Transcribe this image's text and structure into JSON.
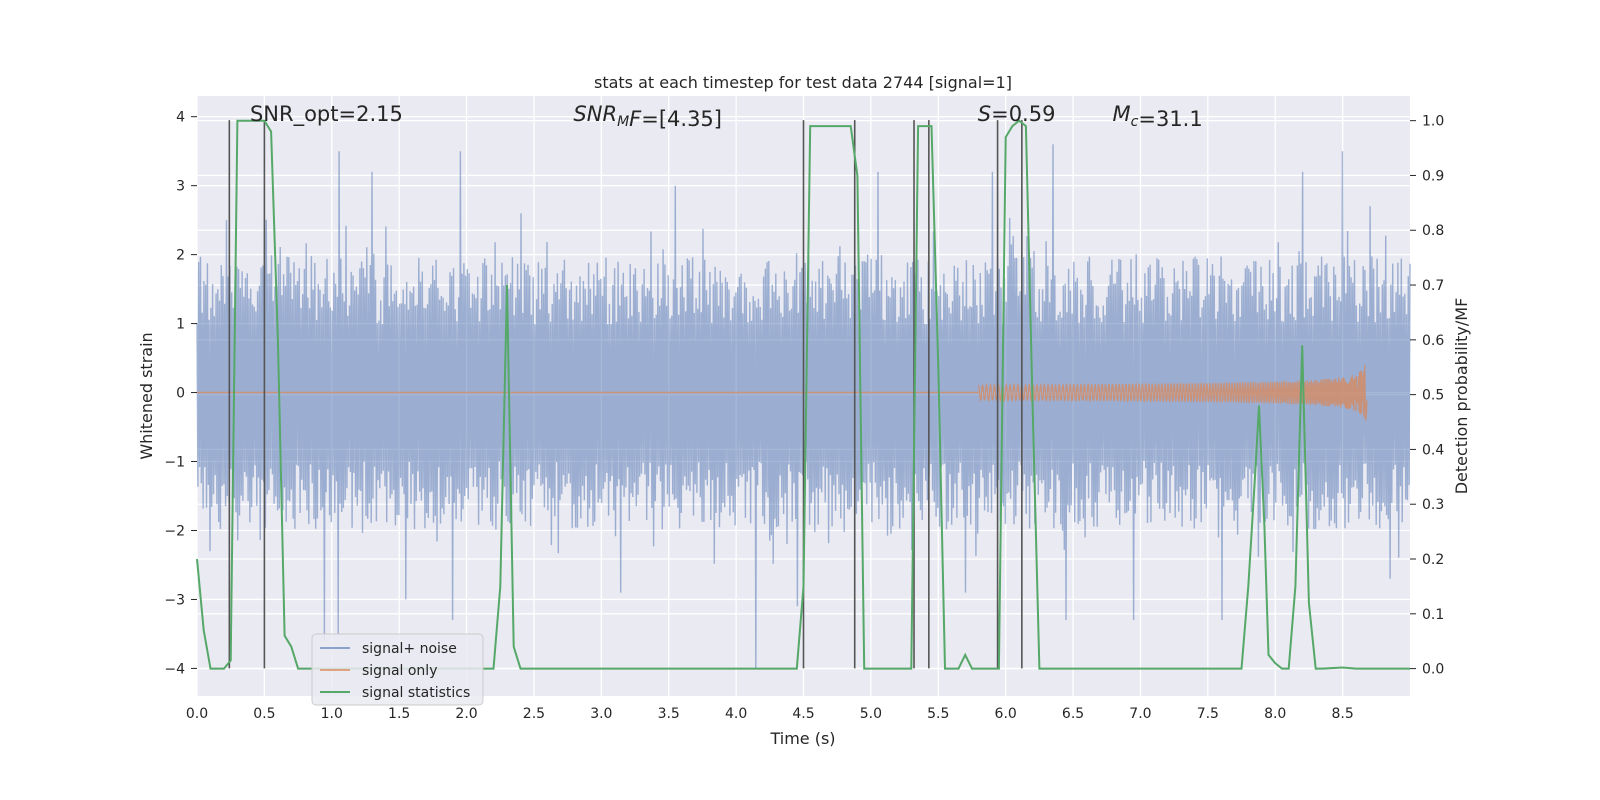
{
  "chart_data": {
    "type": "line",
    "title": "stats at each timestep for test data 2744 [signal=1]",
    "xlabel": "Time (s)",
    "ylabel": "Whitened strain",
    "ylabel_right": "Detection probability/MF",
    "xlim": [
      0.0,
      9.0
    ],
    "ylim": [
      -4.4,
      4.3
    ],
    "ylim_right": [
      -0.05,
      1.045
    ],
    "xticks": [
      0.0,
      0.5,
      1.0,
      1.5,
      2.0,
      2.5,
      3.0,
      3.5,
      4.0,
      4.5,
      5.0,
      5.5,
      6.0,
      6.5,
      7.0,
      7.5,
      8.0,
      8.5
    ],
    "xtick_labels": [
      "0.0",
      "0.5",
      "1.0",
      "1.5",
      "2.0",
      "2.5",
      "3.0",
      "3.5",
      "4.0",
      "4.5",
      "5.0",
      "5.5",
      "6.0",
      "6.5",
      "7.0",
      "7.5",
      "8.0",
      "8.5"
    ],
    "yticks": [
      4,
      3,
      2,
      1,
      0,
      -1,
      -2,
      -3,
      -4
    ],
    "ytick_labels": [
      "4",
      "3",
      "2",
      "1",
      "0",
      "−1",
      "−2",
      "−3",
      "−4"
    ],
    "yticks_right": [
      1.0,
      0.9,
      0.8,
      0.7,
      0.6,
      0.5,
      0.4,
      0.3,
      0.2,
      0.1,
      0.0
    ],
    "ytick_labels_right": [
      "1.0",
      "0.9",
      "0.8",
      "0.7",
      "0.6",
      "0.5",
      "0.4",
      "0.3",
      "0.2",
      "0.1",
      "0.0"
    ],
    "annotations": [
      {
        "id": "snr-opt",
        "parts": [
          {
            "t": "SNR_opt=2.15"
          }
        ],
        "x": 0.2
      },
      {
        "id": "snr-mf",
        "parts": [
          {
            "t": "SNR",
            "i": true
          },
          {
            "t": "M",
            "i": true,
            "sub": true
          },
          {
            "t": "F",
            "i": true
          },
          {
            "t": "=[4.35]"
          }
        ],
        "x": 2.6
      },
      {
        "id": "s-stat",
        "parts": [
          {
            "t": "S",
            "i": true
          },
          {
            "t": "=0.59"
          }
        ],
        "x": 5.6
      },
      {
        "id": "chirp-mass",
        "parts": [
          {
            "t": "M",
            "i": true
          },
          {
            "t": "c",
            "i": true,
            "sub": true
          },
          {
            "t": "=31.1"
          }
        ],
        "x": 6.6
      }
    ],
    "legend": {
      "position": "lower-left",
      "entries": [
        {
          "label": "signal+ noise",
          "color": "#4c72b0"
        },
        {
          "label": "signal only",
          "color": "#dd8452"
        },
        {
          "label": "signal statistics",
          "color": "#55a868"
        }
      ]
    },
    "series": [
      {
        "name": "signal+ noise",
        "axis": "left",
        "color": "#4c72b0",
        "alpha": 0.5,
        "style": "noise",
        "x_range": [
          0.0,
          9.0
        ],
        "envelope": [
          1.8,
          -1.8
        ],
        "extremes": [
          {
            "x": 0.22,
            "y": 2.5
          },
          {
            "x": 0.5,
            "y": 2.5
          },
          {
            "x": 1.05,
            "y": 3.5
          },
          {
            "x": 1.3,
            "y": 3.2
          },
          {
            "x": 1.95,
            "y": 3.5
          },
          {
            "x": 2.4,
            "y": 2.6
          },
          {
            "x": 3.55,
            "y": 3.0
          },
          {
            "x": 5.05,
            "y": 3.2
          },
          {
            "x": 5.9,
            "y": 3.2
          },
          {
            "x": 6.35,
            "y": 3.6
          },
          {
            "x": 8.2,
            "y": 3.2
          },
          {
            "x": 8.5,
            "y": 3.5
          },
          {
            "x": 8.7,
            "y": 2.7
          },
          {
            "x": 0.95,
            "y": -3.6
          },
          {
            "x": 1.05,
            "y": -3.5
          },
          {
            "x": 1.55,
            "y": -3.0
          },
          {
            "x": 1.9,
            "y": -3.3
          },
          {
            "x": 3.15,
            "y": -2.9
          },
          {
            "x": 4.15,
            "y": -4.0
          },
          {
            "x": 4.45,
            "y": -3.1
          },
          {
            "x": 5.7,
            "y": -2.9
          },
          {
            "x": 6.45,
            "y": -3.3
          },
          {
            "x": 6.95,
            "y": -3.3
          },
          {
            "x": 7.6,
            "y": -3.3
          },
          {
            "x": 8.85,
            "y": -2.7
          },
          {
            "x": 0.1,
            "y": -2.3
          }
        ]
      },
      {
        "name": "signal only",
        "axis": "left",
        "color": "#dd8452",
        "alpha": 0.7,
        "style": "chirp",
        "x_range": [
          5.8,
          8.68
        ],
        "merger_time": 8.68,
        "peak_amplitude": 0.58
      },
      {
        "name": "signal statistics",
        "axis": "right",
        "color": "#55a868",
        "alpha": 1.0,
        "style": "line",
        "x": [
          0.0,
          0.05,
          0.1,
          0.15,
          0.2,
          0.25,
          0.3,
          0.35,
          0.4,
          0.45,
          0.5,
          0.55,
          0.6,
          0.65,
          0.7,
          0.75,
          0.8,
          0.85,
          0.9,
          2.15,
          2.2,
          2.25,
          2.3,
          2.35,
          2.4,
          2.45,
          2.5,
          4.45,
          4.5,
          4.55,
          4.6,
          4.65,
          4.7,
          4.75,
          4.8,
          4.85,
          4.9,
          4.95,
          5.3,
          5.35,
          5.4,
          5.45,
          5.5,
          5.55,
          5.6,
          5.65,
          5.7,
          5.75,
          5.8,
          5.95,
          6.0,
          6.05,
          6.1,
          6.15,
          6.2,
          6.25,
          7.75,
          7.8,
          7.85,
          7.88,
          7.92,
          7.95,
          8.0,
          8.05,
          8.1,
          8.15,
          8.2,
          8.25,
          8.3,
          8.35,
          8.5,
          8.6,
          8.7,
          8.8,
          8.9,
          9.0
        ],
        "y": [
          0.2,
          0.07,
          0.0,
          0.0,
          0.0,
          0.015,
          1.0,
          1.0,
          1.0,
          1.0,
          1.0,
          0.98,
          0.6,
          0.06,
          0.04,
          0.0,
          0.0,
          0.0,
          0.0,
          0.0,
          0.0,
          0.15,
          0.7,
          0.04,
          0.0,
          0.0,
          0.0,
          0.0,
          0.15,
          0.99,
          0.99,
          0.99,
          0.99,
          0.99,
          0.99,
          0.99,
          0.9,
          0.0,
          0.0,
          0.99,
          0.99,
          0.99,
          0.55,
          0.0,
          0.0,
          0.0,
          0.025,
          0.0,
          0.0,
          0.0,
          0.97,
          0.99,
          1.0,
          0.99,
          0.48,
          0.0,
          0.0,
          0.15,
          0.35,
          0.48,
          0.26,
          0.025,
          0.01,
          0.0,
          0.0,
          0.15,
          0.59,
          0.12,
          0.0,
          0.0,
          0.002,
          0.0,
          0.0,
          0.0,
          0.0,
          0.0
        ]
      }
    ],
    "vertical_markers": {
      "color": "#555555",
      "x": [
        0.24,
        0.5,
        4.5,
        4.88,
        5.32,
        5.43,
        5.94,
        6.12
      ],
      "y_range": [
        -4.0,
        3.95
      ]
    }
  }
}
